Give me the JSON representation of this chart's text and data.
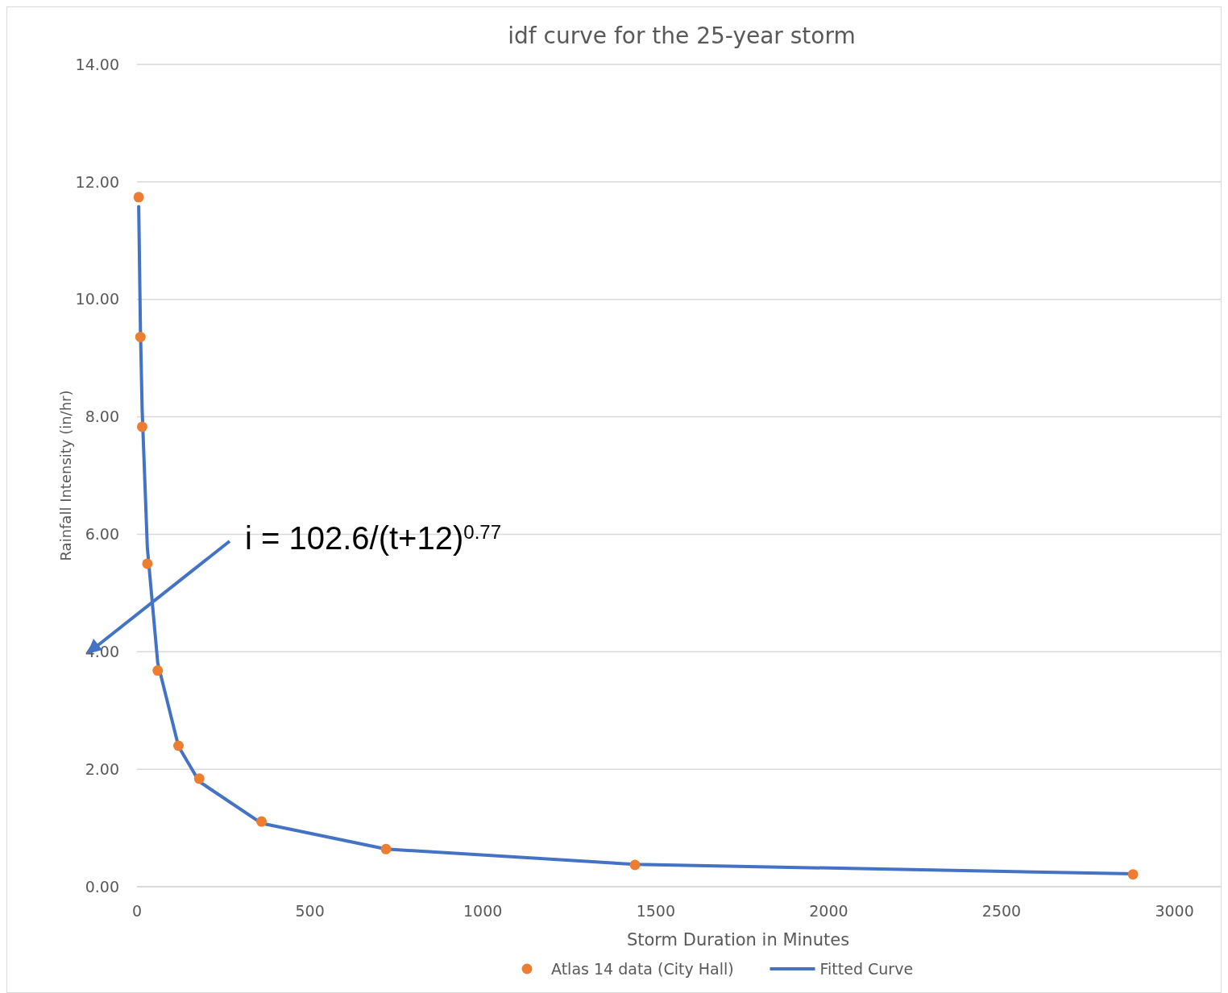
{
  "chart_data": {
    "type": "scatter",
    "title": "idf curve for the 25-year storm",
    "xlabel": "Storm Duration in Minutes",
    "ylabel": "Rainfall Intensity (in/hr)",
    "x": [
      5,
      10,
      15,
      30,
      60,
      120,
      180,
      360,
      720,
      1440,
      2880
    ],
    "series": [
      {
        "name": "Atlas 14 data (City Hall)",
        "color": "#ed7d31",
        "marker": "circle",
        "values": [
          11.74,
          9.36,
          7.83,
          5.5,
          3.68,
          2.4,
          1.84,
          1.11,
          0.64,
          0.37,
          0.21
        ]
      },
      {
        "name": "Fitted Curve",
        "type": "line",
        "color": "#4472c4",
        "marker": "none",
        "line_style": "solid",
        "values": [
          11.58,
          9.49,
          8.11,
          5.77,
          3.81,
          2.39,
          1.79,
          1.08,
          0.64,
          0.38,
          0.22
        ]
      }
    ],
    "xlim": [
      0,
      3150
    ],
    "xticks": [
      0,
      500,
      1000,
      1500,
      2000,
      2500,
      3000
    ],
    "ylim": [
      0,
      14
    ],
    "yticks": [
      {
        "value": 0,
        "label": "0.00"
      },
      {
        "value": 2,
        "label": "2.00"
      },
      {
        "value": 4,
        "label": "4.00"
      },
      {
        "value": 6,
        "label": "6.00"
      },
      {
        "value": 8,
        "label": "8.00"
      },
      {
        "value": 10,
        "label": "10.00"
      },
      {
        "value": 12,
        "label": "12.00"
      },
      {
        "value": 14,
        "label": "14.00"
      }
    ],
    "grid": "y",
    "legend": "bottom",
    "annotations": [
      "i = 102.6/(t+12)$^{0.77}$"
    ]
  }
}
